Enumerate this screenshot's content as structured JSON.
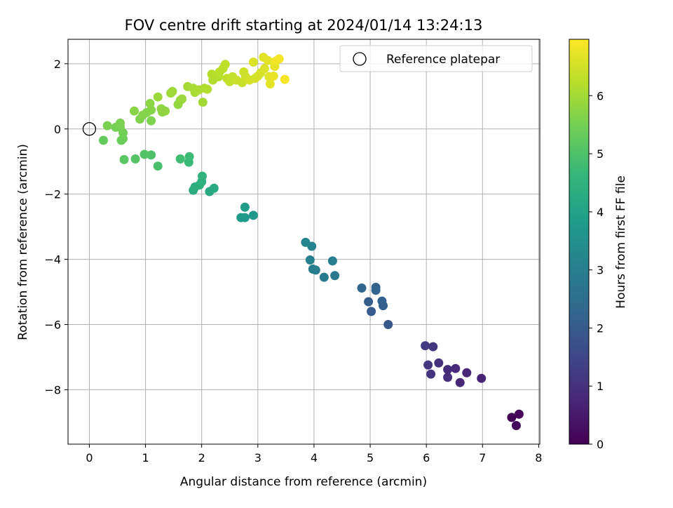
{
  "chart_data": {
    "type": "scatter",
    "title": "FOV centre drift starting at 2024/01/14 13:24:13",
    "xlabel": "Angular distance from reference (arcmin)",
    "ylabel": "Rotation from reference (arcmin)",
    "xlim": [
      -0.38,
      8.02
    ],
    "ylim": [
      -9.67,
      2.75
    ],
    "xticks": [
      "0",
      "1",
      "2",
      "3",
      "4",
      "5",
      "6",
      "7",
      "8"
    ],
    "yticks": [
      "2",
      "0",
      "−2",
      "−4",
      "−6",
      "−8"
    ],
    "grid": true,
    "legend": {
      "placement": "top-right",
      "entries": [
        "Reference platepar"
      ]
    },
    "reference_point": {
      "x": 0,
      "y": 0
    },
    "colorbar": {
      "label": "Hours from first FF file",
      "range": [
        0,
        6.97
      ],
      "ticks": [
        "0",
        "1",
        "2",
        "3",
        "4",
        "5",
        "6"
      ],
      "colormap": [
        "#440154",
        "#482878",
        "#3e4989",
        "#31688e",
        "#26828e",
        "#1f9e89",
        "#35b779",
        "#6ece58",
        "#b5de2b",
        "#fde725"
      ]
    },
    "series": [
      {
        "points": [
          {
            "x": 7.52,
            "y": -8.85,
            "c": 0.05
          },
          {
            "x": 7.65,
            "y": -8.75,
            "c": 0.1
          },
          {
            "x": 7.6,
            "y": -9.1,
            "c": 0.15
          },
          {
            "x": 6.98,
            "y": -7.65,
            "c": 0.7
          },
          {
            "x": 6.72,
            "y": -7.48,
            "c": 0.75
          },
          {
            "x": 6.6,
            "y": -7.78,
            "c": 0.8
          },
          {
            "x": 6.52,
            "y": -7.35,
            "c": 0.85
          },
          {
            "x": 6.38,
            "y": -7.38,
            "c": 0.9
          },
          {
            "x": 6.38,
            "y": -7.62,
            "c": 0.95
          },
          {
            "x": 6.22,
            "y": -7.18,
            "c": 1.0
          },
          {
            "x": 6.08,
            "y": -7.52,
            "c": 1.05
          },
          {
            "x": 6.03,
            "y": -7.24,
            "c": 1.1
          },
          {
            "x": 6.12,
            "y": -6.68,
            "c": 1.15
          },
          {
            "x": 5.98,
            "y": -6.65,
            "c": 1.2
          },
          {
            "x": 5.32,
            "y": -6.0,
            "c": 1.9
          },
          {
            "x": 5.02,
            "y": -5.6,
            "c": 2.0
          },
          {
            "x": 4.97,
            "y": -5.3,
            "c": 2.05
          },
          {
            "x": 5.23,
            "y": -5.42,
            "c": 2.1
          },
          {
            "x": 5.21,
            "y": -5.28,
            "c": 2.15
          },
          {
            "x": 5.1,
            "y": -4.86,
            "c": 2.2
          },
          {
            "x": 5.1,
            "y": -4.95,
            "c": 2.25
          },
          {
            "x": 4.85,
            "y": -4.88,
            "c": 2.3
          },
          {
            "x": 4.37,
            "y": -4.5,
            "c": 2.8
          },
          {
            "x": 4.18,
            "y": -4.55,
            "c": 2.85
          },
          {
            "x": 4.03,
            "y": -4.33,
            "c": 2.9
          },
          {
            "x": 3.98,
            "y": -4.3,
            "c": 2.95
          },
          {
            "x": 4.33,
            "y": -4.05,
            "c": 3.0
          },
          {
            "x": 3.93,
            "y": -4.02,
            "c": 3.05
          },
          {
            "x": 3.96,
            "y": -3.6,
            "c": 3.1
          },
          {
            "x": 3.85,
            "y": -3.48,
            "c": 3.15
          },
          {
            "x": 2.92,
            "y": -2.65,
            "c": 3.7
          },
          {
            "x": 2.77,
            "y": -2.72,
            "c": 3.75
          },
          {
            "x": 2.7,
            "y": -2.72,
            "c": 3.8
          },
          {
            "x": 2.77,
            "y": -2.4,
            "c": 3.85
          },
          {
            "x": 2.14,
            "y": -1.92,
            "c": 4.2
          },
          {
            "x": 2.22,
            "y": -1.82,
            "c": 4.25
          },
          {
            "x": 1.85,
            "y": -1.88,
            "c": 4.3
          },
          {
            "x": 1.88,
            "y": -1.78,
            "c": 4.35
          },
          {
            "x": 1.96,
            "y": -1.72,
            "c": 4.4
          },
          {
            "x": 2.0,
            "y": -1.62,
            "c": 4.45
          },
          {
            "x": 2.01,
            "y": -1.45,
            "c": 4.5
          },
          {
            "x": 1.77,
            "y": -1.02,
            "c": 4.7
          },
          {
            "x": 1.78,
            "y": -0.85,
            "c": 4.75
          },
          {
            "x": 1.62,
            "y": -0.92,
            "c": 4.8
          },
          {
            "x": 1.22,
            "y": -1.14,
            "c": 4.95
          },
          {
            "x": 1.1,
            "y": -0.8,
            "c": 5.0
          },
          {
            "x": 0.98,
            "y": -0.78,
            "c": 5.05
          },
          {
            "x": 0.82,
            "y": -0.92,
            "c": 5.1
          },
          {
            "x": 0.62,
            "y": -0.94,
            "c": 5.15
          },
          {
            "x": 0.25,
            "y": -0.35,
            "c": 5.3
          },
          {
            "x": 0.57,
            "y": -0.35,
            "c": 5.35
          },
          {
            "x": 0.6,
            "y": -0.3,
            "c": 5.4
          },
          {
            "x": 0.6,
            "y": -0.12,
            "c": 5.45
          },
          {
            "x": 0.55,
            "y": 0.05,
            "c": 5.5
          },
          {
            "x": 0.47,
            "y": 0.05,
            "c": 5.5
          },
          {
            "x": 0.32,
            "y": 0.1,
            "c": 5.55
          },
          {
            "x": 0.55,
            "y": 0.18,
            "c": 5.55
          },
          {
            "x": 1.1,
            "y": 0.25,
            "c": 5.6
          },
          {
            "x": 0.9,
            "y": 0.3,
            "c": 5.6
          },
          {
            "x": 0.95,
            "y": 0.42,
            "c": 5.65
          },
          {
            "x": 1.02,
            "y": 0.5,
            "c": 5.65
          },
          {
            "x": 1.1,
            "y": 0.58,
            "c": 5.7
          },
          {
            "x": 0.8,
            "y": 0.55,
            "c": 5.7
          },
          {
            "x": 1.08,
            "y": 0.78,
            "c": 5.75
          },
          {
            "x": 1.3,
            "y": 0.52,
            "c": 5.75
          },
          {
            "x": 1.35,
            "y": 0.55,
            "c": 5.8
          },
          {
            "x": 1.28,
            "y": 0.62,
            "c": 5.8
          },
          {
            "x": 1.58,
            "y": 0.75,
            "c": 5.85
          },
          {
            "x": 1.62,
            "y": 0.88,
            "c": 5.85
          },
          {
            "x": 1.65,
            "y": 0.92,
            "c": 5.9
          },
          {
            "x": 1.22,
            "y": 0.98,
            "c": 5.9
          },
          {
            "x": 1.45,
            "y": 1.1,
            "c": 5.95
          },
          {
            "x": 1.48,
            "y": 1.15,
            "c": 5.95
          },
          {
            "x": 2.02,
            "y": 0.82,
            "c": 6.0
          },
          {
            "x": 1.75,
            "y": 1.3,
            "c": 6.0
          },
          {
            "x": 1.85,
            "y": 1.25,
            "c": 6.05
          },
          {
            "x": 1.88,
            "y": 1.12,
            "c": 6.05
          },
          {
            "x": 1.95,
            "y": 1.2,
            "c": 6.1
          },
          {
            "x": 2.05,
            "y": 1.25,
            "c": 6.1
          },
          {
            "x": 2.1,
            "y": 1.22,
            "c": 6.15
          },
          {
            "x": 2.2,
            "y": 1.5,
            "c": 6.15
          },
          {
            "x": 2.18,
            "y": 1.68,
            "c": 6.2
          },
          {
            "x": 2.3,
            "y": 1.6,
            "c": 6.2
          },
          {
            "x": 2.32,
            "y": 1.75,
            "c": 6.25
          },
          {
            "x": 2.38,
            "y": 1.85,
            "c": 6.25
          },
          {
            "x": 2.42,
            "y": 1.98,
            "c": 6.3
          },
          {
            "x": 2.45,
            "y": 1.55,
            "c": 6.3
          },
          {
            "x": 2.5,
            "y": 1.45,
            "c": 6.35
          },
          {
            "x": 2.55,
            "y": 1.6,
            "c": 6.35
          },
          {
            "x": 2.62,
            "y": 1.5,
            "c": 6.4
          },
          {
            "x": 2.72,
            "y": 1.42,
            "c": 6.4
          },
          {
            "x": 2.78,
            "y": 1.6,
            "c": 6.45
          },
          {
            "x": 2.75,
            "y": 1.75,
            "c": 6.45
          },
          {
            "x": 2.85,
            "y": 1.5,
            "c": 6.5
          },
          {
            "x": 2.95,
            "y": 1.55,
            "c": 6.5
          },
          {
            "x": 3.05,
            "y": 1.72,
            "c": 6.55
          },
          {
            "x": 3.0,
            "y": 1.62,
            "c": 6.55
          },
          {
            "x": 2.92,
            "y": 2.05,
            "c": 6.6
          },
          {
            "x": 3.12,
            "y": 1.85,
            "c": 6.6
          },
          {
            "x": 3.2,
            "y": 1.6,
            "c": 6.65
          },
          {
            "x": 3.1,
            "y": 2.2,
            "c": 6.65
          },
          {
            "x": 3.18,
            "y": 2.1,
            "c": 6.7
          },
          {
            "x": 3.22,
            "y": 1.38,
            "c": 6.7
          },
          {
            "x": 3.28,
            "y": 1.62,
            "c": 6.75
          },
          {
            "x": 3.3,
            "y": 1.92,
            "c": 6.75
          },
          {
            "x": 3.32,
            "y": 2.08,
            "c": 6.8
          },
          {
            "x": 3.38,
            "y": 2.15,
            "c": 6.85
          },
          {
            "x": 3.48,
            "y": 1.52,
            "c": 6.9
          }
        ]
      }
    ]
  }
}
